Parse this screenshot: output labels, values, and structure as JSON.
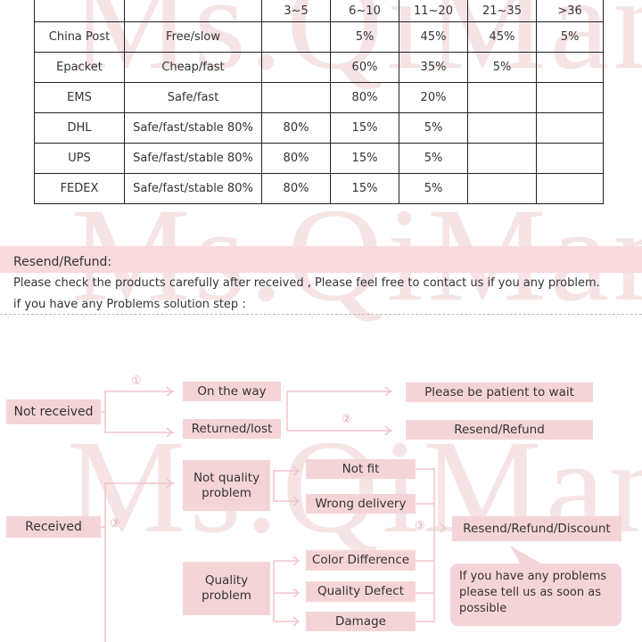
{
  "watermark": "Ms.QiMan",
  "table": {
    "headers": [
      "",
      "",
      "3~5",
      "6~10",
      "11~20",
      "21~35",
      ">36"
    ],
    "rows": [
      [
        "China Post",
        "Free/slow",
        "",
        "5%",
        "45%",
        "45%",
        "5%"
      ],
      [
        "Epacket",
        "Cheap/fast",
        "",
        "60%",
        "35%",
        "5%",
        ""
      ],
      [
        "EMS",
        "Safe/fast",
        "",
        "80%",
        "20%",
        "",
        ""
      ],
      [
        "DHL",
        "Safe/fast/stable 80%",
        "80%",
        "15%",
        "5%",
        "",
        ""
      ],
      [
        "UPS",
        "Safe/fast/stable 80%",
        "80%",
        "15%",
        "5%",
        "",
        ""
      ],
      [
        "FEDEX",
        "Safe/fast/stable 80%",
        "80%",
        "15%",
        "5%",
        "",
        ""
      ]
    ]
  },
  "section": {
    "title": "Resend/Refund:",
    "line1": "Please check the products carefully after received , Please feel free to contact us if you any problem.",
    "line2": "if you have any Problems solution step :"
  },
  "flow": {
    "not_received": "Not received",
    "on_the_way": "On the way",
    "returned_lost": "Returned/lost",
    "patient": "Please be patient to wait",
    "resend_refund": "Resend/Refund",
    "received": "Received",
    "not_quality": "Not quality problem",
    "quality": "Quality problem",
    "not_fit": "Not fit",
    "wrong_delivery": "Wrong delivery",
    "color_diff": "Color Difference",
    "quality_defect": "Quality Defect",
    "damage": "Damage",
    "resend_refund_discount": "Resend/Refund/Discount",
    "step1": "①",
    "step2": "②",
    "step3a": "③",
    "step3b": "③",
    "note": "If you have any problems please tell us as soon as possible"
  },
  "colors": {
    "box": "#f5d4d7",
    "line": "#f0c4c9"
  }
}
